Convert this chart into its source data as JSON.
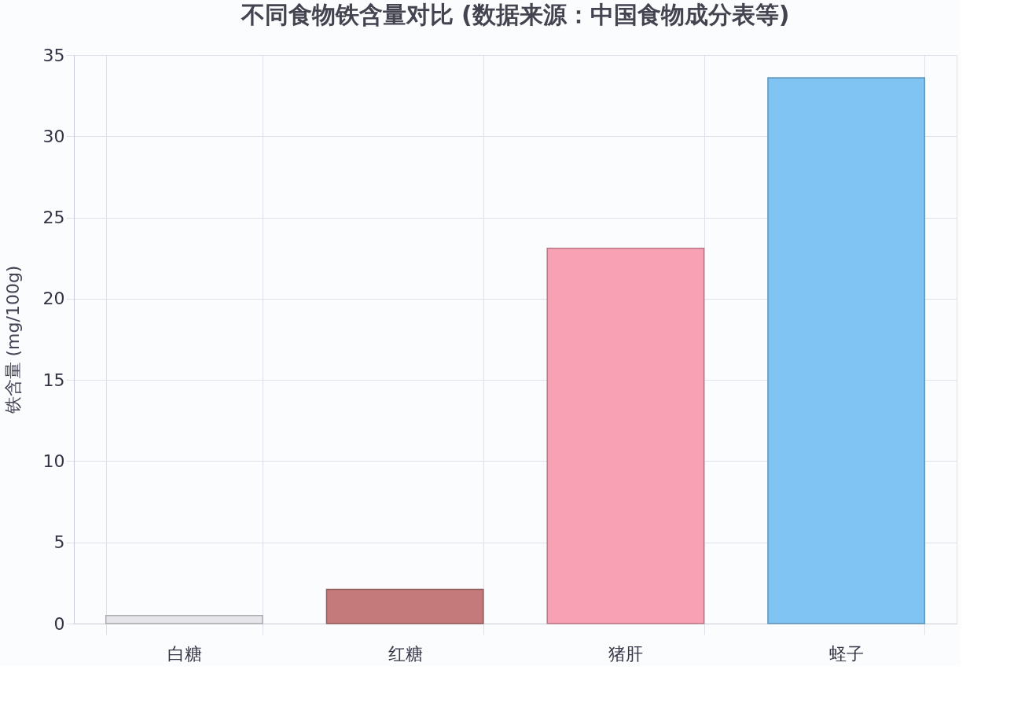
{
  "chart_data": {
    "type": "bar",
    "title": "不同食物铁含量对比 (数据来源：中国食物成分表等)",
    "ylabel": "铁含量 (mg/100g)",
    "categories": [
      "白糖",
      "红糖",
      "猪肝",
      "蛏子"
    ],
    "values": [
      0.5,
      2.1,
      23.1,
      33.6
    ],
    "colors": [
      "#e6e6ea",
      "#c47a7a",
      "#f8a0b4",
      "#80c4f4"
    ],
    "ylim": [
      0,
      35
    ],
    "yticks": [
      0,
      5,
      10,
      15,
      20,
      25,
      30,
      35
    ],
    "grid": true
  }
}
